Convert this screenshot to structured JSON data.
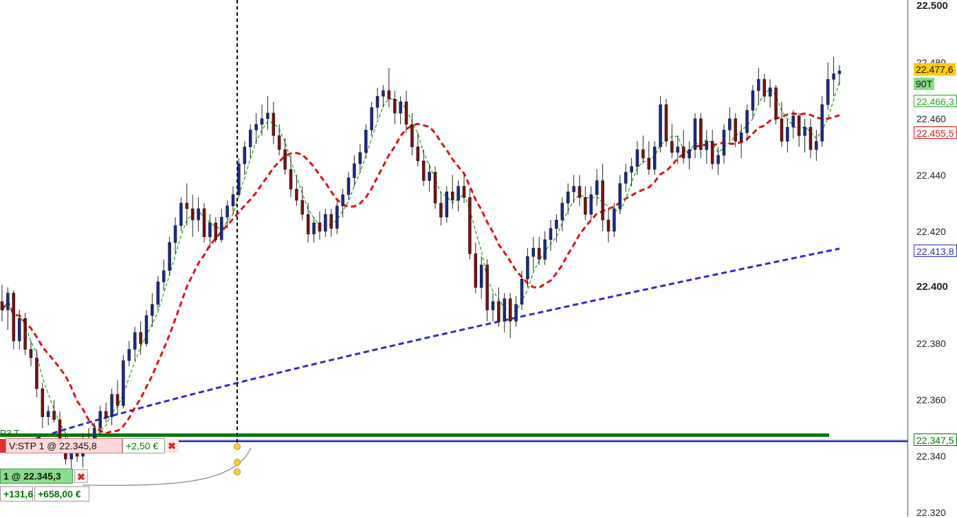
{
  "price_axis": {
    "ticks": [
      {
        "value": 22.5,
        "label": "22.500",
        "bold": true
      },
      {
        "value": 22.48,
        "label": "22.480",
        "bold": false
      },
      {
        "value": 22.46,
        "label": "22.460",
        "bold": false
      },
      {
        "value": 22.44,
        "label": "22.440",
        "bold": false
      },
      {
        "value": 22.42,
        "label": "22.420",
        "bold": false
      },
      {
        "value": 22.4,
        "label": "22.400",
        "bold": true
      },
      {
        "value": 22.38,
        "label": "22.380",
        "bold": false
      },
      {
        "value": 22.36,
        "label": "22.360",
        "bold": false
      },
      {
        "value": 22.34,
        "label": "22.340",
        "bold": false
      },
      {
        "value": 22.32,
        "label": "22.320",
        "bold": false
      }
    ],
    "labels": {
      "last_price": "22.477,6",
      "timeframe": "90T",
      "ma_fast": "22.466,3",
      "ma_mid": "22.455,5",
      "ma_slow": "22.413,8",
      "level_green": "22.347,5"
    }
  },
  "orders": {
    "stop": {
      "label": "V:STP  1  @  22.345,8",
      "pnl": "+2,50 €"
    },
    "position": {
      "label": "1  @  22.345,3",
      "pnl_points": "+131,6",
      "pnl_money": "+658,00 €"
    },
    "level_tag": "R3 T"
  },
  "colors": {
    "bull_candle": "#1a2a8a",
    "bear_candle": "#7a1010",
    "ma_fast": "#22aa22",
    "ma_mid": "#e01010",
    "ma_slow": "#2b2bd0",
    "green_level": "#007700",
    "blue_level": "#0000aa",
    "last_price_bg": "#ffcc00",
    "timeframe_bg": "#88dd88"
  },
  "chart_data": {
    "type": "candlestick",
    "ylim": [
      22.3195,
      22.5005
    ],
    "candles": [
      [
        22.395,
        22.401,
        22.388,
        22.392
      ],
      [
        22.392,
        22.4,
        22.385,
        22.398
      ],
      [
        22.398,
        22.399,
        22.378,
        22.381
      ],
      [
        22.381,
        22.392,
        22.378,
        22.389
      ],
      [
        22.389,
        22.391,
        22.376,
        22.378
      ],
      [
        22.378,
        22.381,
        22.372,
        22.375
      ],
      [
        22.375,
        22.378,
        22.361,
        22.364
      ],
      [
        22.364,
        22.366,
        22.35,
        22.354
      ],
      [
        22.354,
        22.358,
        22.351,
        22.356
      ],
      [
        22.356,
        22.36,
        22.352,
        22.353
      ],
      [
        22.353,
        22.356,
        22.341,
        22.344
      ],
      [
        22.344,
        22.348,
        22.337,
        22.339
      ],
      [
        22.339,
        22.344,
        22.334,
        22.342
      ],
      [
        22.342,
        22.346,
        22.338,
        22.34
      ],
      [
        22.34,
        22.348,
        22.336,
        22.346
      ],
      [
        22.346,
        22.35,
        22.342,
        22.344
      ],
      [
        22.344,
        22.352,
        22.342,
        22.35
      ],
      [
        22.35,
        22.358,
        22.348,
        22.356
      ],
      [
        22.356,
        22.359,
        22.352,
        22.354
      ],
      [
        22.354,
        22.364,
        22.351,
        22.362
      ],
      [
        22.362,
        22.367,
        22.355,
        22.358
      ],
      [
        22.358,
        22.376,
        22.357,
        22.374
      ],
      [
        22.374,
        22.381,
        22.372,
        22.378
      ],
      [
        22.378,
        22.386,
        22.374,
        22.384
      ],
      [
        22.384,
        22.388,
        22.376,
        22.38
      ],
      [
        22.38,
        22.392,
        22.379,
        22.39
      ],
      [
        22.39,
        22.398,
        22.386,
        22.394
      ],
      [
        22.394,
        22.404,
        22.392,
        22.402
      ],
      [
        22.402,
        22.41,
        22.399,
        22.406
      ],
      [
        22.406,
        22.418,
        22.404,
        22.416
      ],
      [
        22.416,
        22.425,
        22.412,
        22.422
      ],
      [
        22.422,
        22.432,
        22.42,
        22.43
      ],
      [
        22.43,
        22.437,
        22.422,
        22.428
      ],
      [
        22.428,
        22.433,
        22.418,
        22.424
      ],
      [
        22.424,
        22.432,
        22.42,
        22.428
      ],
      [
        22.428,
        22.43,
        22.416,
        22.418
      ],
      [
        22.418,
        22.426,
        22.414,
        22.423
      ],
      [
        22.423,
        22.425,
        22.416,
        22.417
      ],
      [
        22.417,
        22.428,
        22.416,
        22.425
      ],
      [
        22.425,
        22.431,
        22.421,
        22.429
      ],
      [
        22.429,
        22.436,
        22.426,
        22.433
      ],
      [
        22.433,
        22.446,
        22.432,
        22.444
      ],
      [
        22.444,
        22.452,
        22.44,
        22.45
      ],
      [
        22.45,
        22.458,
        22.446,
        22.456
      ],
      [
        22.456,
        22.462,
        22.451,
        22.458
      ],
      [
        22.458,
        22.465,
        22.454,
        22.46
      ],
      [
        22.46,
        22.468,
        22.456,
        22.462
      ],
      [
        22.462,
        22.466,
        22.451,
        22.454
      ],
      [
        22.454,
        22.458,
        22.447,
        22.449
      ],
      [
        22.449,
        22.453,
        22.44,
        22.442
      ],
      [
        22.442,
        22.447,
        22.432,
        22.435
      ],
      [
        22.435,
        22.44,
        22.429,
        22.431
      ],
      [
        22.431,
        22.436,
        22.424,
        22.426
      ],
      [
        22.426,
        22.43,
        22.416,
        22.419
      ],
      [
        22.419,
        22.425,
        22.416,
        22.423
      ],
      [
        22.423,
        22.427,
        22.417,
        22.42
      ],
      [
        22.42,
        22.428,
        22.418,
        22.426
      ],
      [
        22.426,
        22.428,
        22.418,
        22.421
      ],
      [
        22.421,
        22.431,
        22.419,
        22.429
      ],
      [
        22.429,
        22.435,
        22.425,
        22.433
      ],
      [
        22.433,
        22.441,
        22.431,
        22.439
      ],
      [
        22.439,
        22.447,
        22.436,
        22.444
      ],
      [
        22.444,
        22.451,
        22.441,
        22.448
      ],
      [
        22.448,
        22.458,
        22.446,
        22.456
      ],
      [
        22.456,
        22.466,
        22.454,
        22.464
      ],
      [
        22.464,
        22.471,
        22.46,
        22.468
      ],
      [
        22.468,
        22.472,
        22.464,
        22.47
      ],
      [
        22.47,
        22.478,
        22.464,
        22.467
      ],
      [
        22.467,
        22.47,
        22.458,
        22.462
      ],
      [
        22.462,
        22.468,
        22.458,
        22.466
      ],
      [
        22.466,
        22.47,
        22.455,
        22.458
      ],
      [
        22.458,
        22.462,
        22.447,
        22.45
      ],
      [
        22.45,
        22.455,
        22.443,
        22.445
      ],
      [
        22.445,
        22.449,
        22.436,
        22.438
      ],
      [
        22.438,
        22.444,
        22.434,
        22.441
      ],
      [
        22.441,
        22.443,
        22.428,
        22.43
      ],
      [
        22.43,
        22.434,
        22.422,
        22.425
      ],
      [
        22.425,
        22.436,
        22.423,
        22.434
      ],
      [
        22.434,
        22.44,
        22.428,
        22.431
      ],
      [
        22.431,
        22.438,
        22.427,
        22.436
      ],
      [
        22.436,
        22.44,
        22.43,
        22.432
      ],
      [
        22.432,
        22.435,
        22.41,
        22.412
      ],
      [
        22.412,
        22.416,
        22.398,
        22.4
      ],
      [
        22.4,
        22.411,
        22.396,
        22.408
      ],
      [
        22.408,
        22.41,
        22.388,
        22.392
      ],
      [
        22.392,
        22.398,
        22.388,
        22.395
      ],
      [
        22.395,
        22.4,
        22.386,
        22.388
      ],
      [
        22.388,
        22.398,
        22.384,
        22.396
      ],
      [
        22.396,
        22.398,
        22.382,
        22.388
      ],
      [
        22.388,
        22.397,
        22.386,
        22.394
      ],
      [
        22.394,
        22.406,
        22.392,
        22.403
      ],
      [
        22.403,
        22.414,
        22.4,
        22.411
      ],
      [
        22.411,
        22.418,
        22.406,
        22.414
      ],
      [
        22.414,
        22.418,
        22.408,
        22.41
      ],
      [
        22.41,
        22.42,
        22.408,
        22.417
      ],
      [
        22.417,
        22.424,
        22.413,
        22.421
      ],
      [
        22.421,
        22.426,
        22.416,
        22.424
      ],
      [
        22.424,
        22.432,
        22.42,
        22.43
      ],
      [
        22.43,
        22.437,
        22.426,
        22.434
      ],
      [
        22.434,
        22.44,
        22.43,
        22.436
      ],
      [
        22.436,
        22.44,
        22.429,
        22.432
      ],
      [
        22.432,
        22.436,
        22.424,
        22.426
      ],
      [
        22.426,
        22.436,
        22.424,
        22.433
      ],
      [
        22.433,
        22.442,
        22.429,
        22.438
      ],
      [
        22.438,
        22.444,
        22.42,
        22.424
      ],
      [
        22.424,
        22.428,
        22.416,
        22.42
      ],
      [
        22.42,
        22.43,
        22.418,
        22.428
      ],
      [
        22.428,
        22.44,
        22.426,
        22.437
      ],
      [
        22.437,
        22.444,
        22.434,
        22.441
      ],
      [
        22.441,
        22.446,
        22.436,
        22.443
      ],
      [
        22.443,
        22.452,
        22.44,
        22.449
      ],
      [
        22.449,
        22.454,
        22.444,
        22.446
      ],
      [
        22.446,
        22.452,
        22.44,
        22.442
      ],
      [
        22.442,
        22.452,
        22.44,
        22.45
      ],
      [
        22.45,
        22.468,
        22.448,
        22.465
      ],
      [
        22.465,
        22.467,
        22.45,
        22.452
      ],
      [
        22.452,
        22.458,
        22.446,
        22.448
      ],
      [
        22.448,
        22.454,
        22.444,
        22.45
      ],
      [
        22.45,
        22.456,
        22.444,
        22.446
      ],
      [
        22.446,
        22.452,
        22.442,
        22.449
      ],
      [
        22.449,
        22.462,
        22.446,
        22.46
      ],
      [
        22.46,
        22.462,
        22.446,
        22.449
      ],
      [
        22.449,
        22.456,
        22.444,
        22.452
      ],
      [
        22.452,
        22.456,
        22.442,
        22.444
      ],
      [
        22.444,
        22.45,
        22.44,
        22.447
      ],
      [
        22.447,
        22.458,
        22.444,
        22.456
      ],
      [
        22.456,
        22.464,
        22.452,
        22.46
      ],
      [
        22.46,
        22.462,
        22.45,
        22.452
      ],
      [
        22.452,
        22.458,
        22.446,
        22.455
      ],
      [
        22.455,
        22.465,
        22.452,
        22.463
      ],
      [
        22.463,
        22.472,
        22.46,
        22.47
      ],
      [
        22.47,
        22.478,
        22.465,
        22.474
      ],
      [
        22.474,
        22.476,
        22.466,
        22.468
      ],
      [
        22.468,
        22.474,
        22.464,
        22.471
      ],
      [
        22.471,
        22.472,
        22.458,
        22.46
      ],
      [
        22.46,
        22.466,
        22.45,
        22.452
      ],
      [
        22.452,
        22.46,
        22.448,
        22.457
      ],
      [
        22.457,
        22.463,
        22.453,
        22.461
      ],
      [
        22.461,
        22.462,
        22.45,
        22.454
      ],
      [
        22.454,
        22.46,
        22.448,
        22.457
      ],
      [
        22.457,
        22.46,
        22.446,
        22.449
      ],
      [
        22.449,
        22.456,
        22.445,
        22.452
      ],
      [
        22.452,
        22.468,
        22.45,
        22.465
      ],
      [
        22.465,
        22.48,
        22.463,
        22.474
      ],
      [
        22.474,
        22.482,
        22.468,
        22.476
      ],
      [
        22.476,
        22.479,
        22.472,
        22.477
      ]
    ]
  }
}
